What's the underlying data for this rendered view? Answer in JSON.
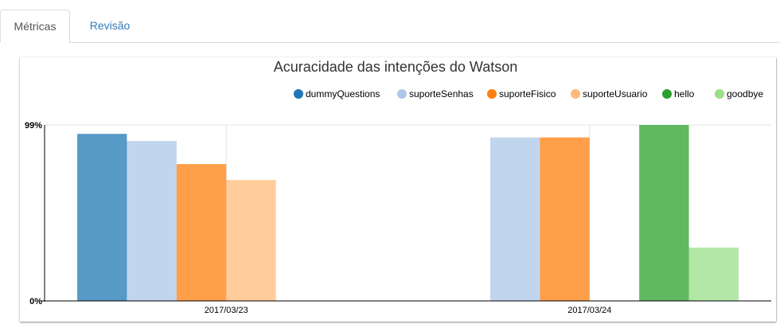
{
  "tabs": [
    {
      "label": "Métricas",
      "active": true
    },
    {
      "label": "Revisão",
      "active": false
    }
  ],
  "chart_data": {
    "type": "bar",
    "title": "Acuracidade das intenções do Watson",
    "xlabel": "",
    "ylabel": "",
    "ylim": [
      0,
      99
    ],
    "yticks": [
      "0%",
      "99%"
    ],
    "categories": [
      "2017/03/23",
      "2017/03/24"
    ],
    "series": [
      {
        "name": "dummyQuestions",
        "color": "#1f77b4",
        "values": [
          94,
          null
        ]
      },
      {
        "name": "suporteSenhas",
        "color": "#aec7e8",
        "values": [
          90,
          92
        ]
      },
      {
        "name": "suporteFisico",
        "color": "#ff7f0e",
        "values": [
          77,
          92
        ]
      },
      {
        "name": "suporteUsuario",
        "color": "#ffbb78",
        "values": [
          68,
          null
        ]
      },
      {
        "name": "hello",
        "color": "#2ca02c",
        "values": [
          null,
          99
        ]
      },
      {
        "name": "goodbye",
        "color": "#98df8a",
        "values": [
          null,
          30
        ]
      }
    ],
    "legend_position": "top-right",
    "grid": true
  }
}
